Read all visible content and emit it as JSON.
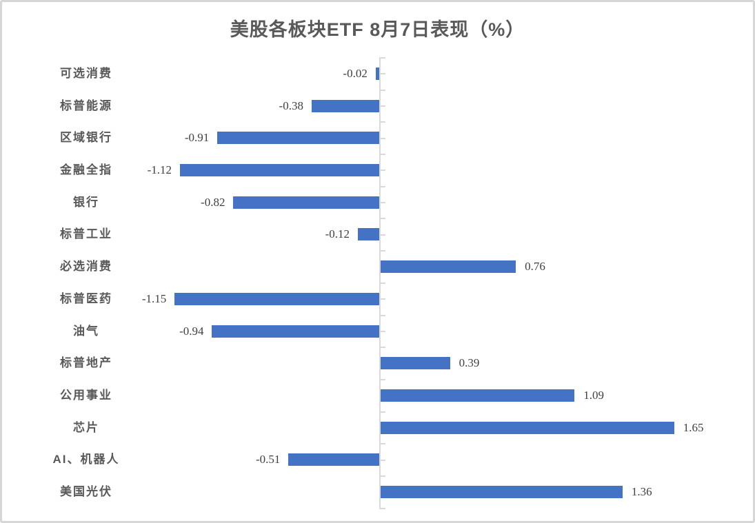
{
  "page": {
    "background": "#ffffff",
    "frame_border_color": "#d6d6d6"
  },
  "chart_data": {
    "type": "bar",
    "orientation": "horizontal",
    "title": "美股各板块ETF 8月7日表现（%）",
    "categories": [
      "可选消费",
      "标普能源",
      "区域银行",
      "金融全指",
      "银行",
      "标普工业",
      "必选消费",
      "标普医药",
      "油气",
      "标普地产",
      "公用事业",
      "芯片",
      "AI、机器人",
      "美国光伏"
    ],
    "values": [
      -0.02,
      -0.38,
      -0.91,
      -1.12,
      -0.82,
      -0.12,
      0.76,
      -1.15,
      -0.94,
      0.39,
      1.09,
      1.65,
      -0.51,
      1.36
    ],
    "value_labels": [
      "-0.02",
      "-0.38",
      "-0.91",
      "-1.12",
      "-0.82",
      "-0.12",
      "0.76",
      "-1.15",
      "-0.94",
      "0.39",
      "1.09",
      "1.65",
      "-0.51",
      "1.36"
    ],
    "xlabel": "",
    "ylabel": "",
    "xlim": [
      -1.5,
      2.1
    ],
    "grid": false,
    "legend": false,
    "data_labels": "outside-end",
    "bar_color": "#4472C4",
    "axis_color": "#D9D9D9",
    "title_color": "#595959",
    "category_label_color": "#595959",
    "value_label_color": "#404040"
  }
}
